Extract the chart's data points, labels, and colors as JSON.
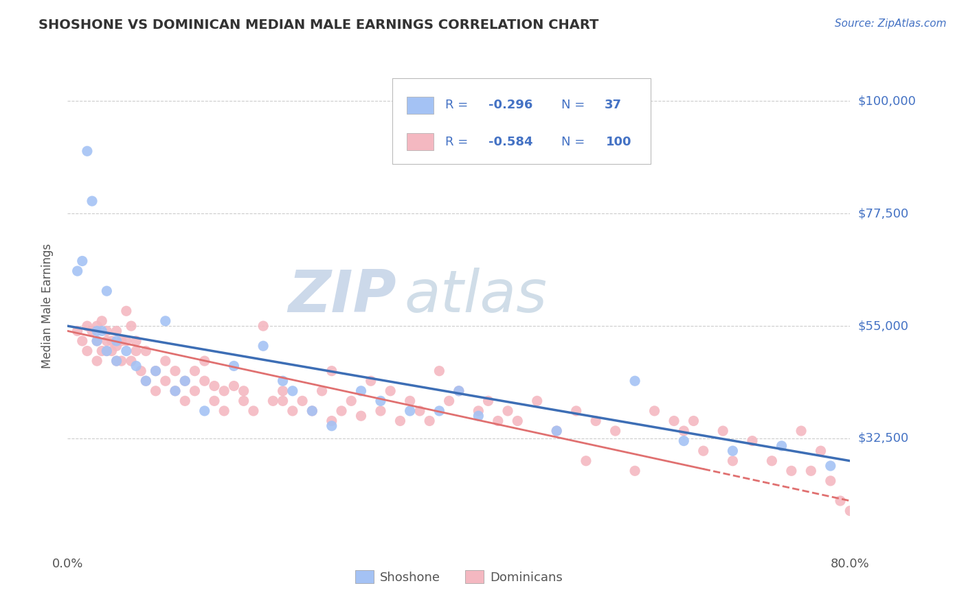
{
  "title": "SHOSHONE VS DOMINICAN MEDIAN MALE EARNINGS CORRELATION CHART",
  "source_text": "Source: ZipAtlas.com",
  "ylabel": "Median Male Earnings",
  "ytick_labels": [
    "$100,000",
    "$77,500",
    "$55,000",
    "$32,500"
  ],
  "ytick_values": [
    100000,
    77500,
    55000,
    32500
  ],
  "ylim": [
    10000,
    108000
  ],
  "xlim": [
    0.0,
    0.8
  ],
  "shoshone_R": -0.296,
  "shoshone_N": 37,
  "dominican_R": -0.584,
  "dominican_N": 100,
  "shoshone_color": "#a4c2f4",
  "dominican_color": "#f4b8c1",
  "shoshone_line_color": "#3d6eb5",
  "dominican_line_color": "#e07070",
  "legend_text_color": "#4472c4",
  "legend_value_color": "#2255cc",
  "watermark_color": "#ccd9ea",
  "background_color": "#ffffff",
  "grid_color": "#cccccc",
  "shoshone_x": [
    0.01,
    0.015,
    0.02,
    0.025,
    0.03,
    0.03,
    0.035,
    0.04,
    0.04,
    0.05,
    0.05,
    0.06,
    0.07,
    0.08,
    0.09,
    0.1,
    0.11,
    0.12,
    0.14,
    0.17,
    0.2,
    0.22,
    0.23,
    0.25,
    0.27,
    0.3,
    0.32,
    0.35,
    0.38,
    0.4,
    0.42,
    0.5,
    0.58,
    0.63,
    0.68,
    0.73,
    0.78
  ],
  "shoshone_y": [
    66000,
    68000,
    90000,
    80000,
    54000,
    52000,
    54000,
    50000,
    62000,
    52000,
    48000,
    50000,
    47000,
    44000,
    46000,
    56000,
    42000,
    44000,
    38000,
    47000,
    51000,
    44000,
    42000,
    38000,
    35000,
    42000,
    40000,
    38000,
    38000,
    42000,
    37000,
    34000,
    44000,
    32000,
    30000,
    31000,
    27000
  ],
  "dominican_x": [
    0.01,
    0.015,
    0.02,
    0.02,
    0.025,
    0.03,
    0.03,
    0.03,
    0.035,
    0.035,
    0.04,
    0.04,
    0.04,
    0.045,
    0.045,
    0.05,
    0.05,
    0.05,
    0.055,
    0.055,
    0.06,
    0.06,
    0.065,
    0.065,
    0.07,
    0.07,
    0.075,
    0.08,
    0.08,
    0.09,
    0.09,
    0.1,
    0.1,
    0.11,
    0.11,
    0.12,
    0.12,
    0.13,
    0.13,
    0.14,
    0.14,
    0.15,
    0.15,
    0.16,
    0.16,
    0.17,
    0.18,
    0.18,
    0.19,
    0.2,
    0.21,
    0.22,
    0.22,
    0.23,
    0.24,
    0.25,
    0.26,
    0.27,
    0.27,
    0.28,
    0.29,
    0.3,
    0.31,
    0.32,
    0.33,
    0.34,
    0.35,
    0.36,
    0.37,
    0.38,
    0.39,
    0.4,
    0.42,
    0.43,
    0.44,
    0.45,
    0.46,
    0.48,
    0.5,
    0.52,
    0.53,
    0.54,
    0.56,
    0.58,
    0.6,
    0.62,
    0.63,
    0.64,
    0.65,
    0.67,
    0.68,
    0.7,
    0.72,
    0.74,
    0.75,
    0.76,
    0.77,
    0.78,
    0.79,
    0.8
  ],
  "dominican_y": [
    54000,
    52000,
    55000,
    50000,
    54000,
    55000,
    52000,
    48000,
    56000,
    50000,
    54000,
    52000,
    50000,
    52000,
    50000,
    54000,
    51000,
    48000,
    52000,
    48000,
    58000,
    52000,
    55000,
    48000,
    52000,
    50000,
    46000,
    50000,
    44000,
    46000,
    42000,
    44000,
    48000,
    46000,
    42000,
    44000,
    40000,
    46000,
    42000,
    44000,
    48000,
    43000,
    40000,
    42000,
    38000,
    43000,
    42000,
    40000,
    38000,
    55000,
    40000,
    42000,
    40000,
    38000,
    40000,
    38000,
    42000,
    36000,
    46000,
    38000,
    40000,
    37000,
    44000,
    38000,
    42000,
    36000,
    40000,
    38000,
    36000,
    46000,
    40000,
    42000,
    38000,
    40000,
    36000,
    38000,
    36000,
    40000,
    34000,
    38000,
    28000,
    36000,
    34000,
    26000,
    38000,
    36000,
    34000,
    36000,
    30000,
    34000,
    28000,
    32000,
    28000,
    26000,
    34000,
    26000,
    30000,
    24000,
    20000,
    18000
  ]
}
